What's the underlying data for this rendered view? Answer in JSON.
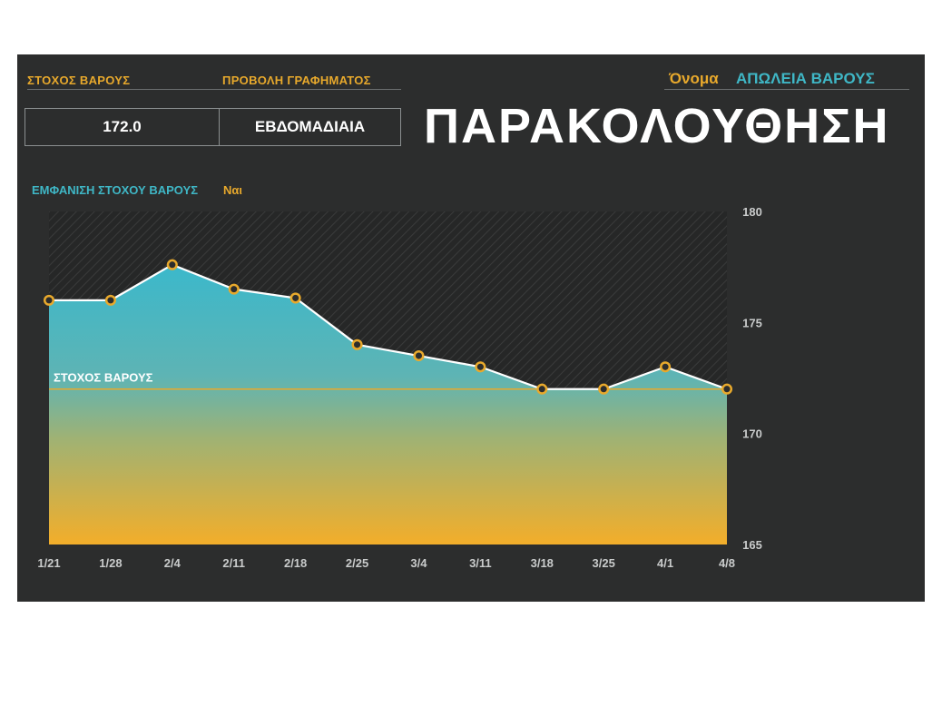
{
  "header": {
    "goal_weight_label": "ΣΤΟΧΟΣ ΒΑΡΟΥΣ",
    "chart_view_label": "ΠΡΟΒΟΛΗ ΓΡΑΦΗΜΑΤΟΣ",
    "name_label": "Όνομα",
    "name_value": "ΑΠΩΛΕΙΑ ΒΑΡΟΥΣ",
    "goal_weight_value": "172.0",
    "chart_view_value": "ΕΒΔΟΜΑΔΙΑΙΑ",
    "title": "ΠΑΡΑΚΟΛΟΥΘΗΣΗ",
    "show_goal_label": "ΕΜΦΑΝΙΣΗ ΣΤΟΧΟΥ ΒΑΡΟΥΣ",
    "show_goal_value": "Ναι"
  },
  "colors": {
    "background": "#2c2d2d",
    "accent_gold": "#e8a92c",
    "accent_teal": "#3fb7c6",
    "line": "#ffffff"
  },
  "chart_data": {
    "type": "area",
    "categories": [
      "1/21",
      "1/28",
      "2/4",
      "2/11",
      "2/18",
      "2/25",
      "3/4",
      "3/11",
      "3/18",
      "3/25",
      "4/1",
      "4/8"
    ],
    "values": [
      176.0,
      176.0,
      177.6,
      176.5,
      176.1,
      174.0,
      173.5,
      173.0,
      172.0,
      172.0,
      173.0,
      172.0
    ],
    "goal": {
      "label": "ΣΤΟΧΟΣ ΒΑΡΟΥΣ",
      "value": 172.0
    },
    "ylim": [
      165,
      180
    ],
    "yticks": [
      180,
      175,
      170,
      165
    ],
    "grid": false,
    "legend": "none"
  }
}
